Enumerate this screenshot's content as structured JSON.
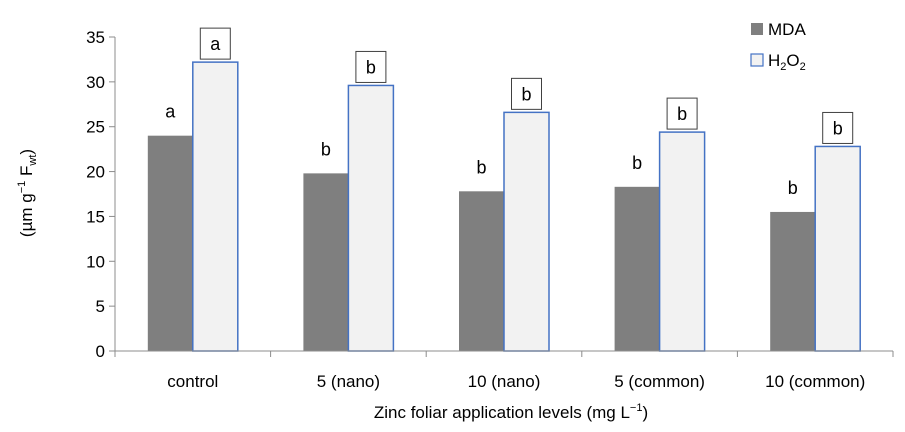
{
  "chart_data": {
    "type": "bar",
    "categories": [
      "control",
      "5 (nano)",
      "10 (nano)",
      "5 (common)",
      "10 (common)"
    ],
    "series": [
      {
        "name": "MDA",
        "values": [
          24.0,
          19.8,
          17.8,
          18.3,
          15.5
        ],
        "letters": [
          "a",
          "b",
          "b",
          "b",
          "b"
        ],
        "color": "#7f7f7f",
        "stroke": "#7f7f7f"
      },
      {
        "name": "H2O2",
        "name_parts": {
          "base1": "H",
          "sub1": "2",
          "base2": "O",
          "sub2": "2"
        },
        "values": [
          32.2,
          29.6,
          26.6,
          24.4,
          22.8
        ],
        "letters": [
          "a",
          "b",
          "b",
          "b",
          "b"
        ],
        "color": "#f2f2f2",
        "stroke": "#4472c4"
      }
    ],
    "xlabel": {
      "main": "Zinc foliar application levels (mg L",
      "sup": "−1",
      "close": ")"
    },
    "ylabel": {
      "open": "(µm g",
      "sup": "−1",
      "mid": " F",
      "sub": "wt",
      "close": ")"
    },
    "ylim": [
      0,
      35
    ],
    "yticks": [
      0,
      5,
      10,
      15,
      20,
      25,
      30,
      35
    ],
    "grid": false,
    "legend": "top-right"
  }
}
